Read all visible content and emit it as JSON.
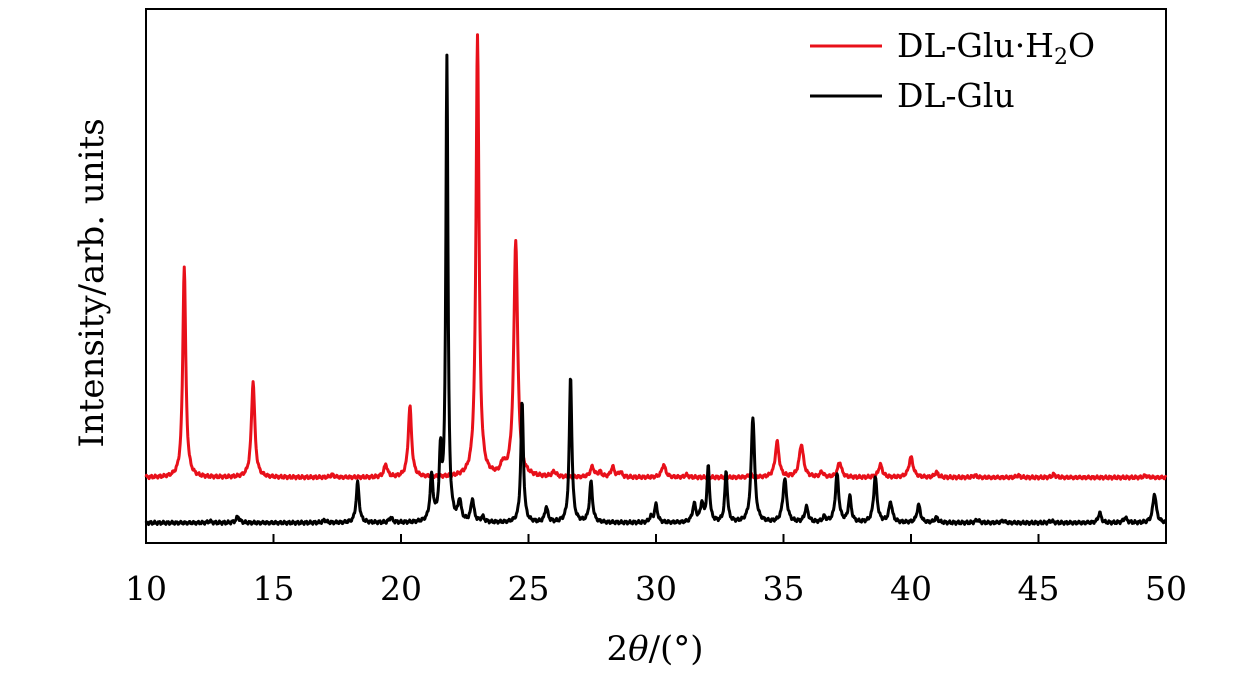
{
  "chart_data": {
    "type": "line",
    "xlabel_prefix": "2",
    "xlabel_theta": "θ",
    "xlabel_suffix": "/(°)",
    "ylabel": "Intensity/arb. units",
    "xlim": [
      10,
      50
    ],
    "xticks": [
      "10",
      "15",
      "20",
      "25",
      "30",
      "35",
      "40",
      "45",
      "50"
    ],
    "legend_position": "top-right",
    "yticks_shown": false,
    "series": [
      {
        "name_main": "DL-Glu·H",
        "name_sub": "2",
        "name_tail": "O",
        "color": "#e8101a",
        "baseline": 0.02,
        "peaks": [
          [
            11.5,
            0.42,
            0.07
          ],
          [
            14.2,
            0.19,
            0.08
          ],
          [
            17.3,
            0.005,
            0.08
          ],
          [
            19.4,
            0.025,
            0.08
          ],
          [
            20.35,
            0.14,
            0.08
          ],
          [
            23.0,
            0.88,
            0.07
          ],
          [
            24.5,
            0.47,
            0.09
          ],
          [
            24.0,
            0.02,
            0.1
          ],
          [
            26.0,
            0.01,
            0.1
          ],
          [
            27.5,
            0.02,
            0.09
          ],
          [
            27.8,
            0.01,
            0.08
          ],
          [
            28.3,
            0.02,
            0.08
          ],
          [
            28.6,
            0.01,
            0.08
          ],
          [
            30.3,
            0.025,
            0.09
          ],
          [
            31.2,
            0.005,
            0.08
          ],
          [
            33.7,
            0.006,
            0.08
          ],
          [
            34.75,
            0.07,
            0.09
          ],
          [
            35.7,
            0.065,
            0.1
          ],
          [
            36.5,
            0.01,
            0.08
          ],
          [
            37.2,
            0.03,
            0.09
          ],
          [
            38.8,
            0.025,
            0.09
          ],
          [
            40.0,
            0.04,
            0.1
          ],
          [
            41.0,
            0.01,
            0.08
          ],
          [
            42.5,
            0.004,
            0.08
          ],
          [
            44.2,
            0.004,
            0.08
          ],
          [
            45.6,
            0.006,
            0.08
          ],
          [
            49.2,
            0.004,
            0.08
          ]
        ]
      },
      {
        "name_main": "DL-Glu",
        "name_sub": "",
        "name_tail": "",
        "color": "#000000",
        "baseline": -0.07,
        "peaks": [
          [
            12.5,
            0.003,
            0.08
          ],
          [
            13.6,
            0.012,
            0.08
          ],
          [
            17.0,
            0.005,
            0.08
          ],
          [
            18.3,
            0.08,
            0.07
          ],
          [
            19.6,
            0.01,
            0.07
          ],
          [
            21.2,
            0.09,
            0.07
          ],
          [
            21.55,
            0.13,
            0.06
          ],
          [
            21.8,
            0.92,
            0.05
          ],
          [
            22.3,
            0.04,
            0.07
          ],
          [
            22.8,
            0.045,
            0.07
          ],
          [
            23.2,
            0.01,
            0.07
          ],
          [
            24.75,
            0.24,
            0.06
          ],
          [
            25.7,
            0.03,
            0.07
          ],
          [
            26.65,
            0.29,
            0.06
          ],
          [
            27.45,
            0.08,
            0.07
          ],
          [
            29.8,
            0.01,
            0.07
          ],
          [
            30.0,
            0.035,
            0.07
          ],
          [
            31.5,
            0.035,
            0.08
          ],
          [
            31.8,
            0.035,
            0.07
          ],
          [
            32.05,
            0.11,
            0.06
          ],
          [
            32.75,
            0.1,
            0.06
          ],
          [
            33.8,
            0.21,
            0.08
          ],
          [
            35.05,
            0.085,
            0.09
          ],
          [
            35.9,
            0.03,
            0.08
          ],
          [
            36.6,
            0.01,
            0.08
          ],
          [
            37.1,
            0.095,
            0.08
          ],
          [
            37.6,
            0.05,
            0.07
          ],
          [
            38.6,
            0.09,
            0.08
          ],
          [
            39.2,
            0.04,
            0.08
          ],
          [
            40.3,
            0.035,
            0.08
          ],
          [
            41.0,
            0.01,
            0.08
          ],
          [
            42.6,
            0.006,
            0.08
          ],
          [
            43.6,
            0.004,
            0.08
          ],
          [
            45.5,
            0.004,
            0.08
          ],
          [
            47.4,
            0.02,
            0.07
          ],
          [
            48.4,
            0.01,
            0.08
          ],
          [
            49.55,
            0.058,
            0.08
          ]
        ]
      }
    ]
  }
}
